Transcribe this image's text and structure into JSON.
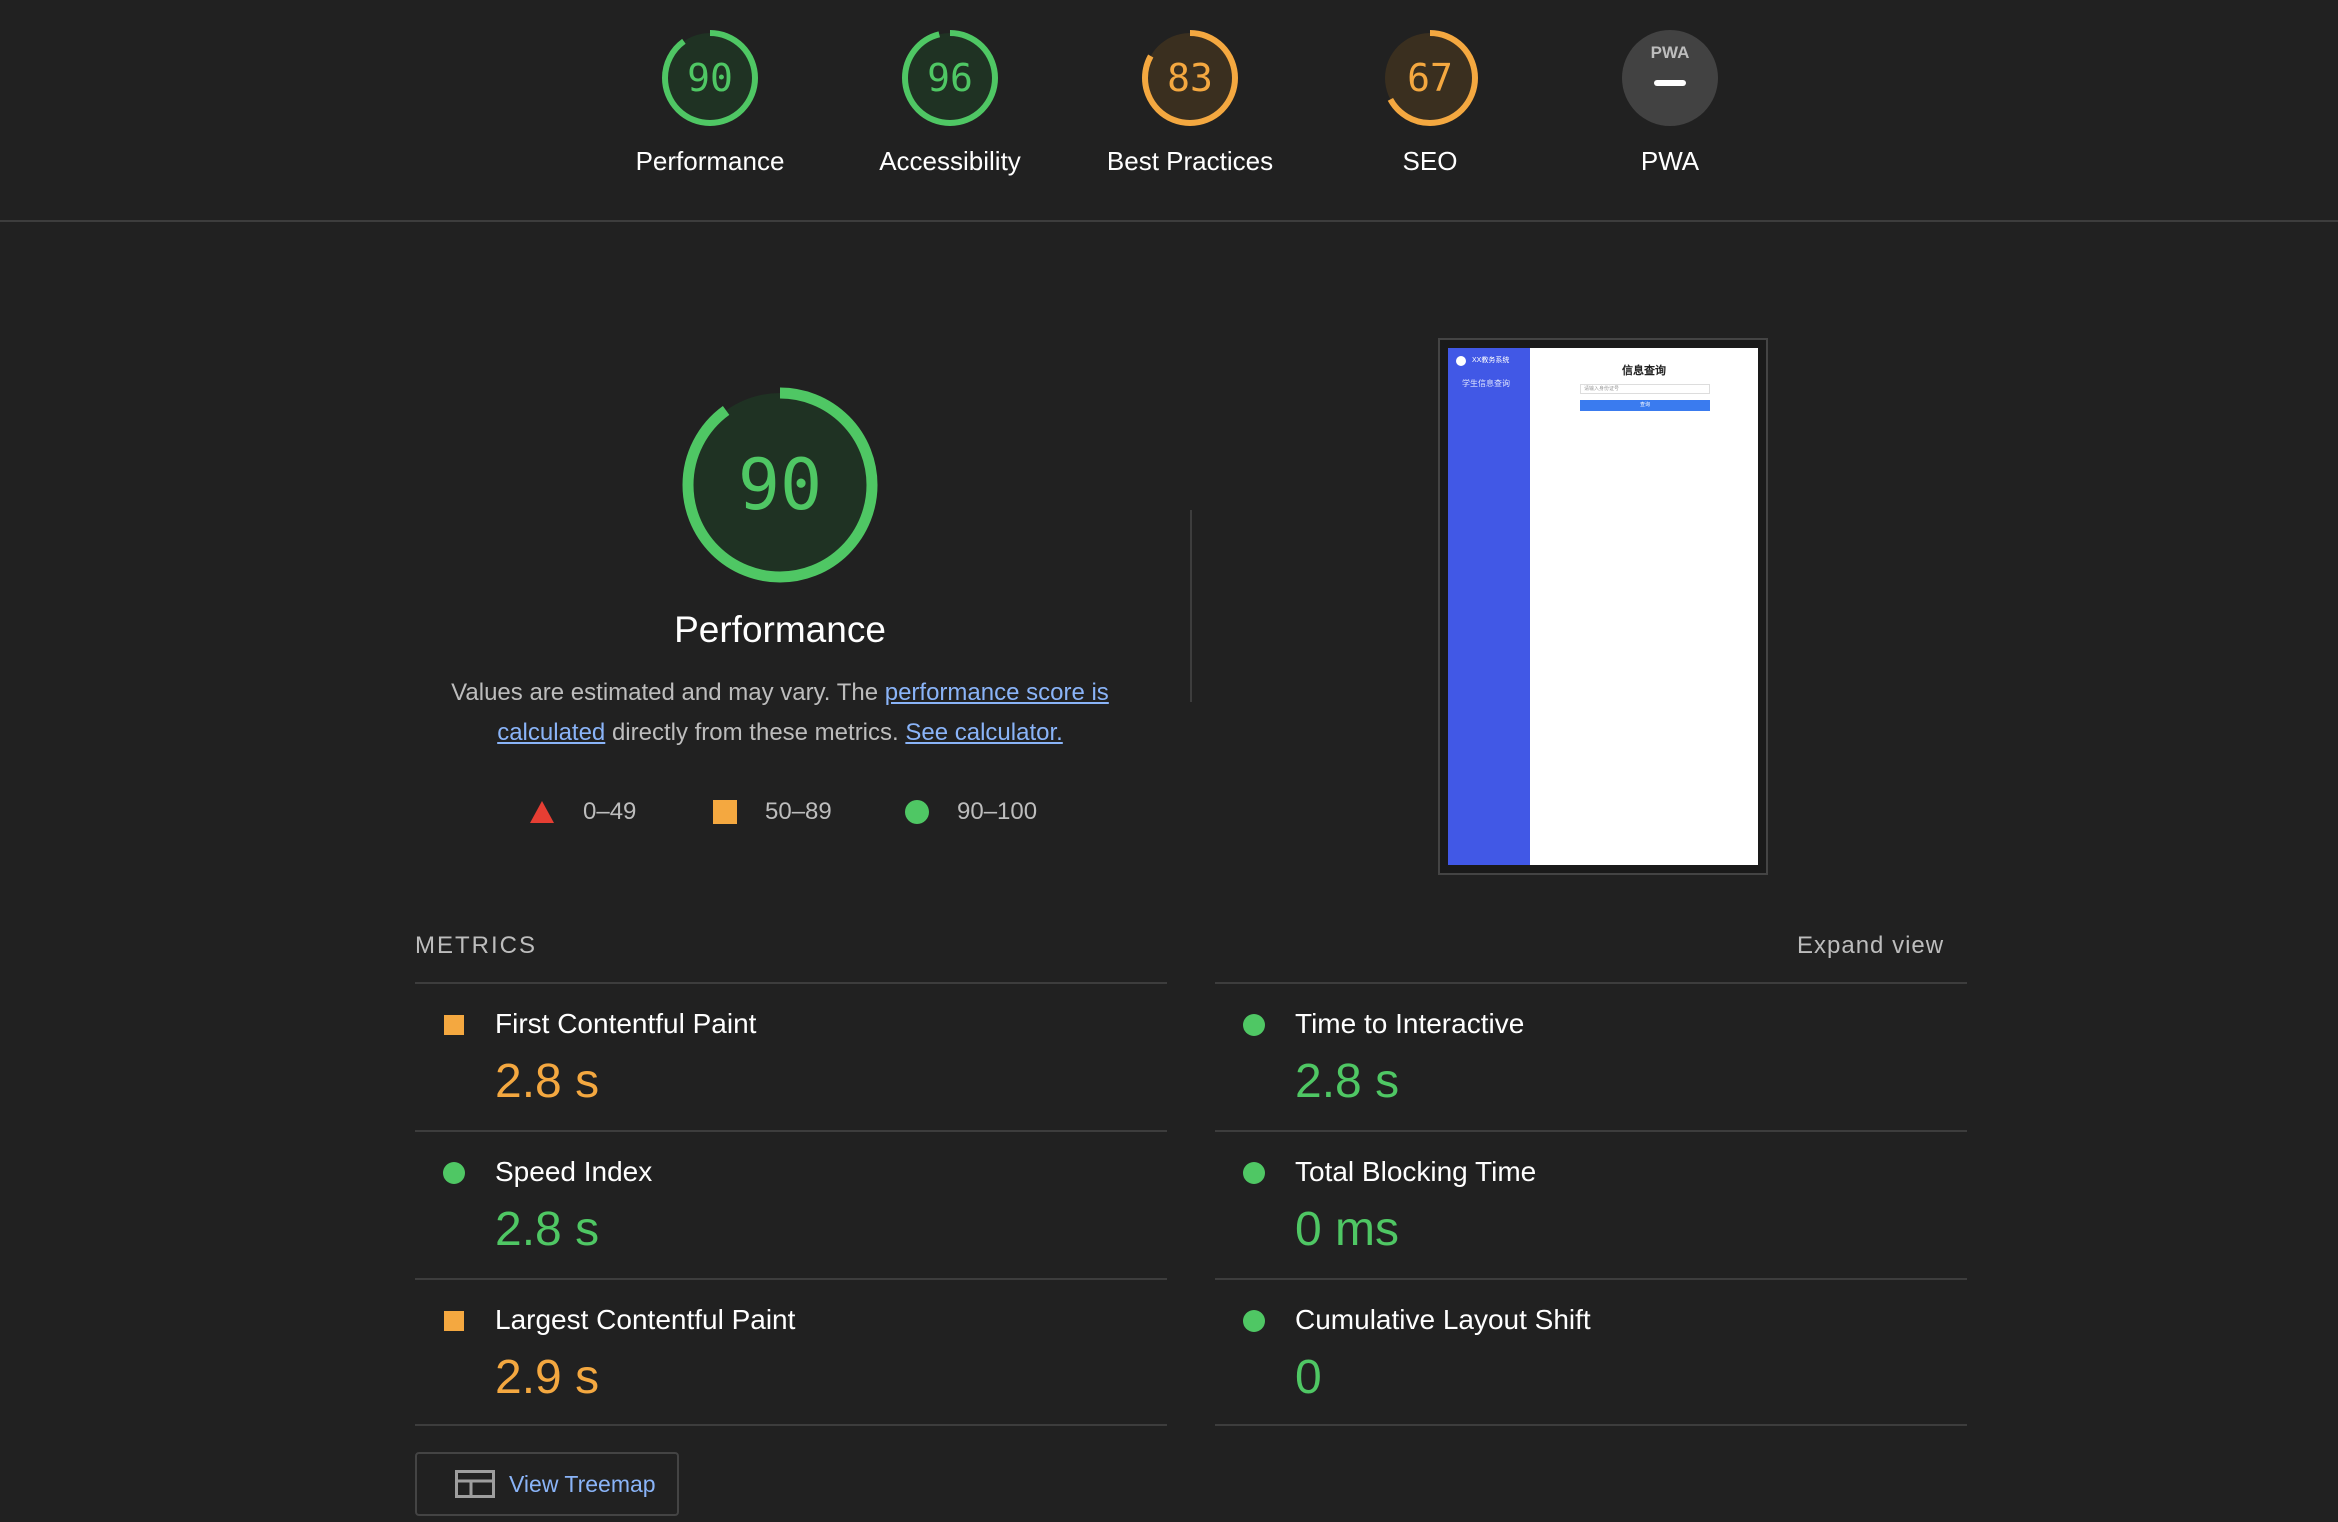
{
  "colors": {
    "pass": "#4fc764",
    "average": "#f4a840",
    "fail": "#e63e33",
    "pass_bg": "#1f3223",
    "average_bg": "#3a2f1f",
    "track": "#333333",
    "link": "#8ab4f8"
  },
  "summary": [
    {
      "id": "performance",
      "score": "90",
      "value": 90,
      "label": "Performance",
      "rating": "pass"
    },
    {
      "id": "accessibility",
      "score": "96",
      "value": 96,
      "label": "Accessibility",
      "rating": "pass"
    },
    {
      "id": "best-practices",
      "score": "83",
      "value": 83,
      "label": "Best Practices",
      "rating": "average"
    },
    {
      "id": "seo",
      "score": "67",
      "value": 67,
      "label": "SEO",
      "rating": "average"
    },
    {
      "id": "pwa",
      "score": "",
      "badge_text": "PWA",
      "label": "PWA",
      "rating": "na"
    }
  ],
  "performance": {
    "score": "90",
    "value": 90,
    "title": "Performance",
    "desc_prefix": "Values are estimated and may vary. The ",
    "desc_link1": "performance score is calculated",
    "desc_middle": " directly from these metrics. ",
    "desc_link2": "See calculator."
  },
  "legend": [
    {
      "shape": "triangle",
      "range": "0–49"
    },
    {
      "shape": "square",
      "range": "50–89"
    },
    {
      "shape": "circle",
      "range": "90–100"
    }
  ],
  "thumbnail": {
    "brand": "XX教务系统",
    "nav_item": "学生信息查询",
    "heading": "信息查询",
    "input_placeholder": "请输入身份证号",
    "button_label": "查询"
  },
  "metrics": {
    "header": "METRICS",
    "expand_label": "Expand view",
    "items": [
      {
        "name": "First Contentful Paint",
        "value": "2.8 s",
        "rating": "average"
      },
      {
        "name": "Time to Interactive",
        "value": "2.8 s",
        "rating": "pass"
      },
      {
        "name": "Speed Index",
        "value": "2.8 s",
        "rating": "pass"
      },
      {
        "name": "Total Blocking Time",
        "value": "0 ms",
        "rating": "pass"
      },
      {
        "name": "Largest Contentful Paint",
        "value": "2.9 s",
        "rating": "average"
      },
      {
        "name": "Cumulative Layout Shift",
        "value": "0",
        "rating": "pass"
      }
    ]
  },
  "treemap": {
    "label": "View Treemap"
  }
}
